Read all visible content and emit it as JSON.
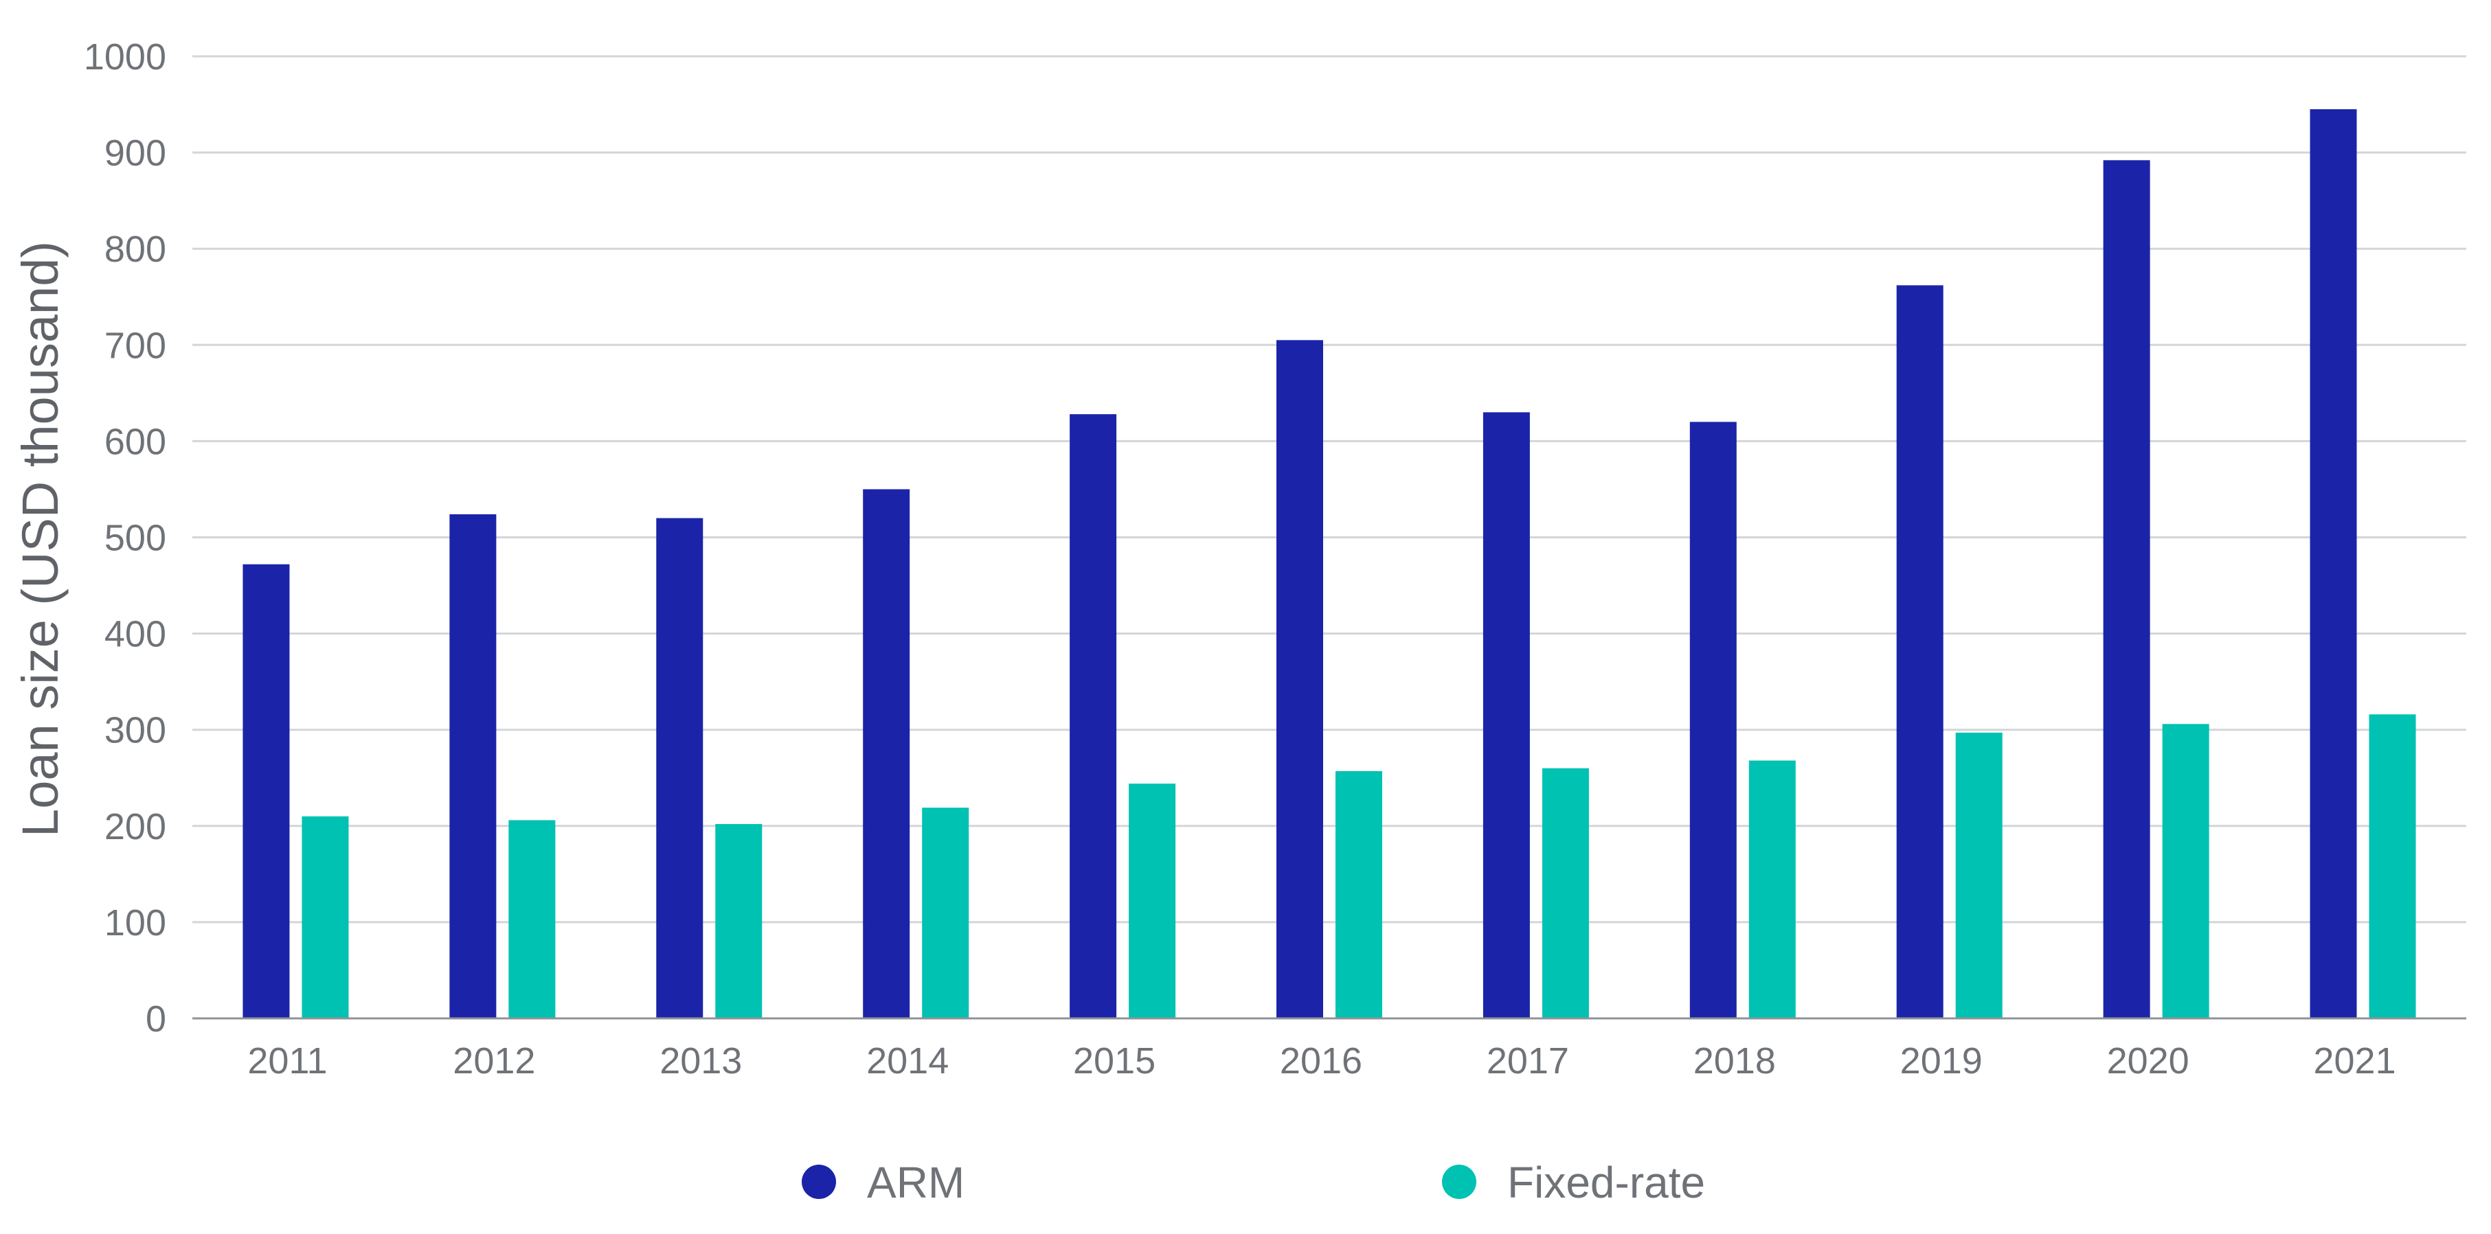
{
  "chart_data": {
    "type": "bar",
    "title": "",
    "xlabel": "",
    "ylabel": "Loan size (USD thousand)",
    "ylim": [
      0,
      1000
    ],
    "yticks": [
      "0",
      "100",
      "200",
      "300",
      "400",
      "500",
      "600",
      "700",
      "800",
      "900",
      "1000"
    ],
    "grid": true,
    "legend_position": "bottom",
    "categories": [
      "2011",
      "2012",
      "2013",
      "2014",
      "2015",
      "2016",
      "2017",
      "2018",
      "2019",
      "2020",
      "2021"
    ],
    "series": [
      {
        "name": "ARM",
        "color": "#1b24a8",
        "values": [
          472,
          524,
          520,
          550,
          628,
          705,
          630,
          620,
          762,
          892,
          945
        ]
      },
      {
        "name": "Fixed-rate",
        "color": "#00c2b2",
        "values": [
          210,
          206,
          202,
          219,
          244,
          257,
          260,
          268,
          297,
          306,
          316
        ]
      }
    ]
  }
}
